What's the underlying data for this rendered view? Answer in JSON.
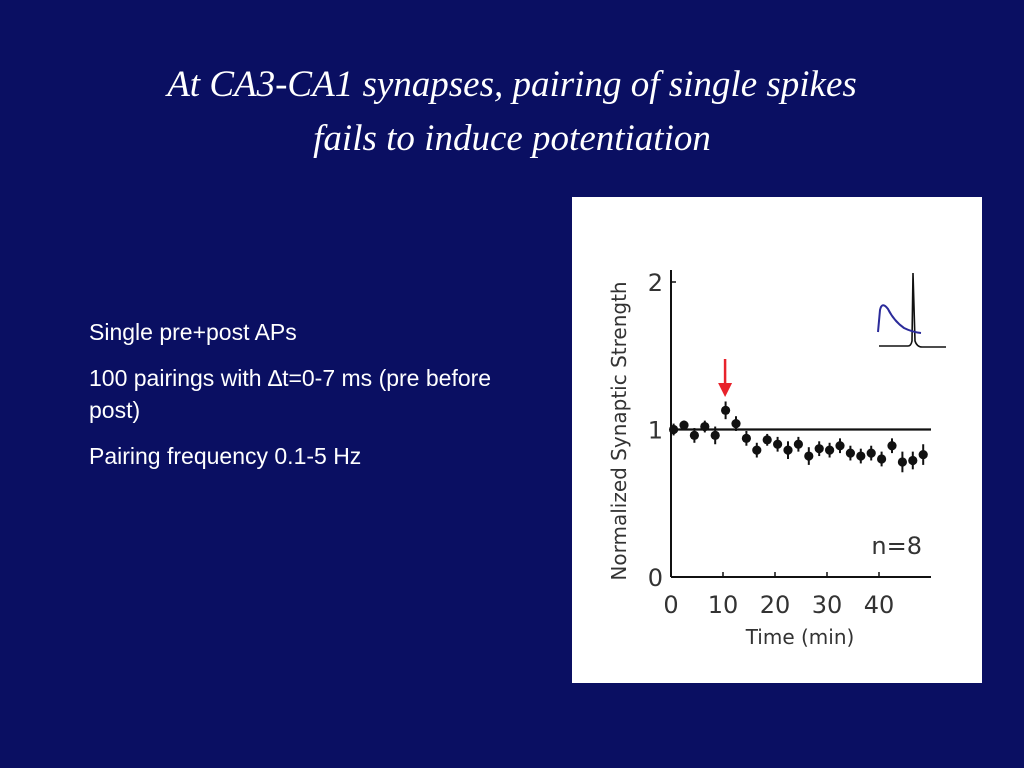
{
  "slide": {
    "title_lines": [
      "At CA3-CA1 synapses, pairing of single spikes",
      "fails to induce potentiation"
    ],
    "bullets": [
      "Single pre+post APs",
      "100 pairings with ∆t=0-7 ms (pre before post)",
      "Pairing frequency 0.1-5 Hz"
    ],
    "colors": {
      "background": "#0a0f62",
      "text": "#ffffff",
      "arrow": "#e8222b",
      "inset_trace": "#2b2b9a"
    }
  },
  "chart_data": {
    "type": "scatter",
    "ylabel": "Normalized Synaptic Strength",
    "xlabel": "Time (min)",
    "xticks": [
      "0",
      "10",
      "20",
      "30",
      "40"
    ],
    "yticks": [
      "0",
      "1",
      "2"
    ],
    "ylim": [
      0,
      2
    ],
    "xlim": [
      0,
      50
    ],
    "baseline": 1,
    "annotation": "n=8",
    "pairing_time": 10,
    "series": [
      {
        "points": [
          {
            "x": 0.5,
            "y": 1.0,
            "err": 0.04
          },
          {
            "x": 2.5,
            "y": 1.03,
            "err": 0.03
          },
          {
            "x": 4.5,
            "y": 0.96,
            "err": 0.05
          },
          {
            "x": 6.5,
            "y": 1.02,
            "err": 0.04
          },
          {
            "x": 8.5,
            "y": 0.96,
            "err": 0.06
          },
          {
            "x": 10.5,
            "y": 1.13,
            "err": 0.06
          },
          {
            "x": 12.5,
            "y": 1.04,
            "err": 0.05
          },
          {
            "x": 14.5,
            "y": 0.94,
            "err": 0.05
          },
          {
            "x": 16.5,
            "y": 0.86,
            "err": 0.05
          },
          {
            "x": 18.5,
            "y": 0.93,
            "err": 0.04
          },
          {
            "x": 20.5,
            "y": 0.9,
            "err": 0.05
          },
          {
            "x": 22.5,
            "y": 0.86,
            "err": 0.06
          },
          {
            "x": 24.5,
            "y": 0.9,
            "err": 0.05
          },
          {
            "x": 26.5,
            "y": 0.82,
            "err": 0.06
          },
          {
            "x": 28.5,
            "y": 0.87,
            "err": 0.05
          },
          {
            "x": 30.5,
            "y": 0.86,
            "err": 0.05
          },
          {
            "x": 32.5,
            "y": 0.89,
            "err": 0.05
          },
          {
            "x": 34.5,
            "y": 0.84,
            "err": 0.05
          },
          {
            "x": 36.5,
            "y": 0.82,
            "err": 0.05
          },
          {
            "x": 38.5,
            "y": 0.84,
            "err": 0.05
          },
          {
            "x": 40.5,
            "y": 0.8,
            "err": 0.05
          },
          {
            "x": 42.5,
            "y": 0.89,
            "err": 0.05
          },
          {
            "x": 44.5,
            "y": 0.78,
            "err": 0.07
          },
          {
            "x": 46.5,
            "y": 0.79,
            "err": 0.06
          },
          {
            "x": 48.5,
            "y": 0.83,
            "err": 0.07
          }
        ]
      }
    ]
  }
}
